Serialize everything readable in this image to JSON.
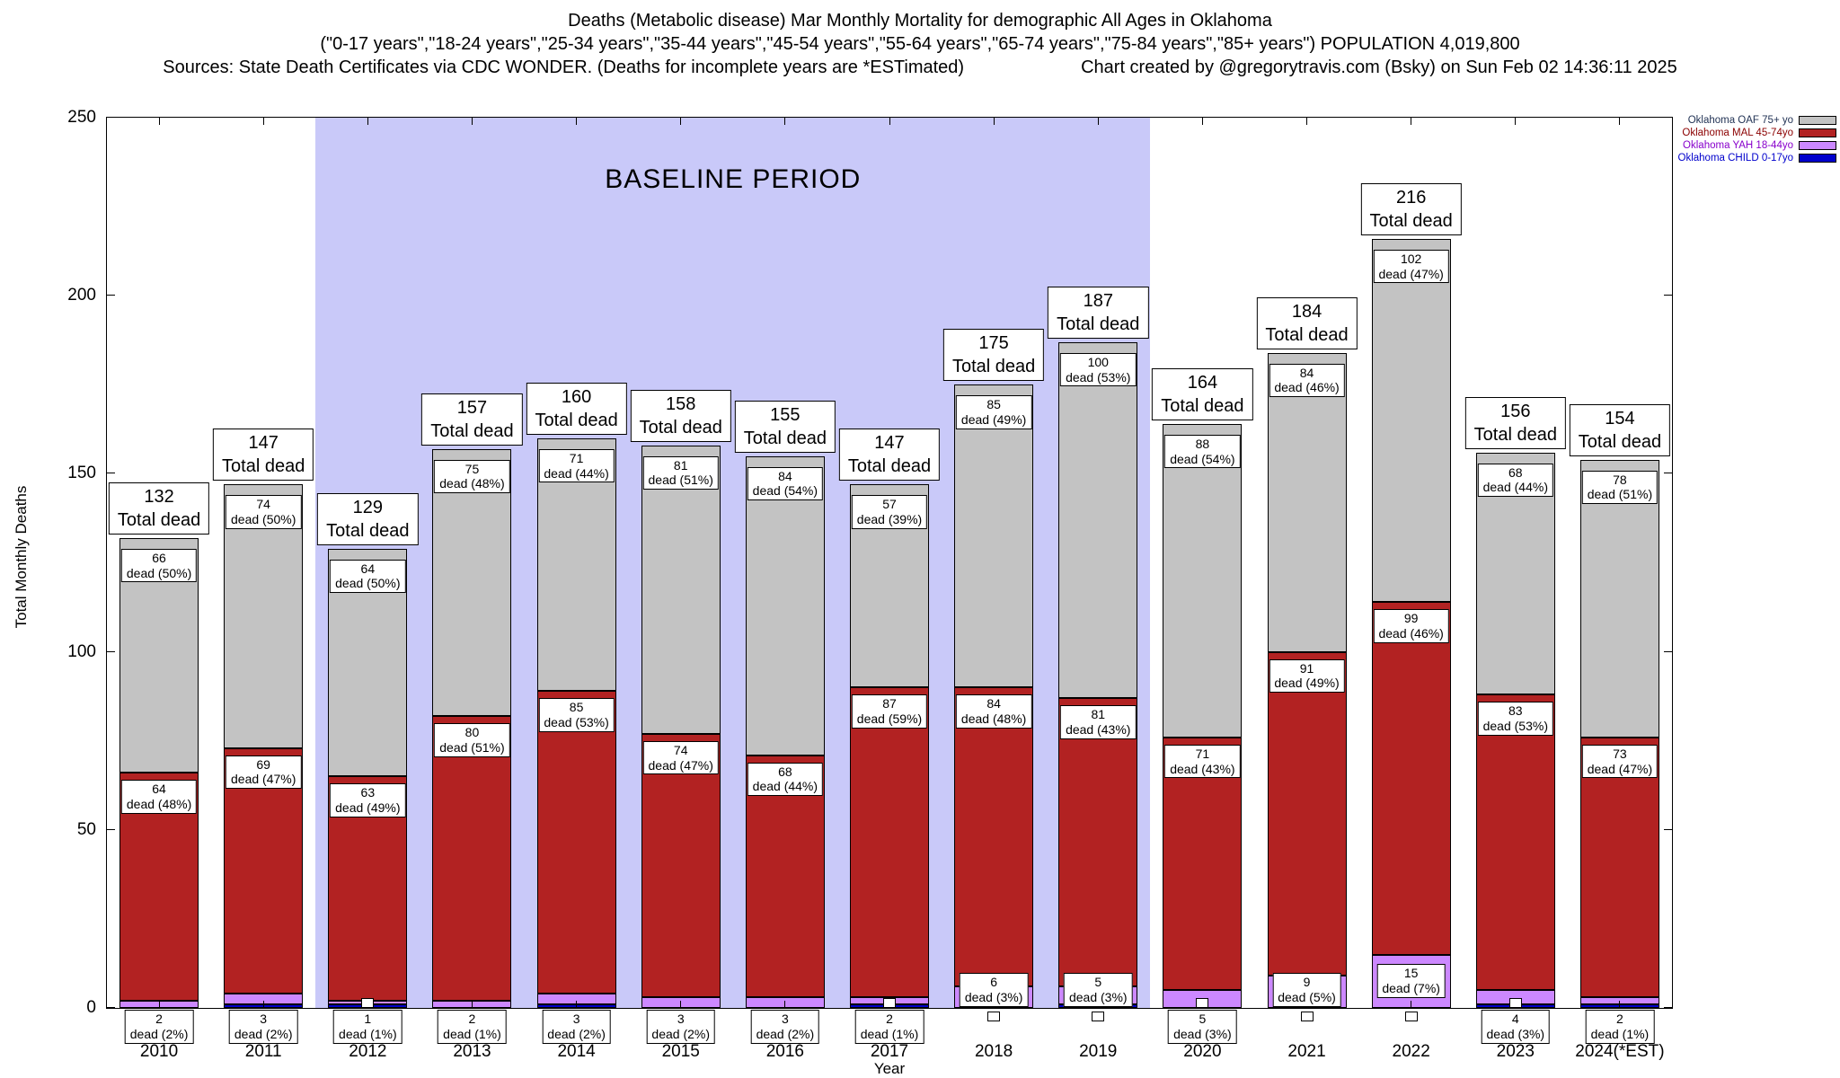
{
  "titles": {
    "line1": "Deaths (Metabolic disease) Mar Monthly Mortality for demographic All Ages in Oklahoma",
    "line2": "(\"0-17 years\",\"18-24 years\",\"25-34 years\",\"35-44 years\",\"45-54 years\",\"55-64 years\",\"65-74 years\",\"75-84 years\",\"85+ years\") POPULATION 4,019,800",
    "sources": "Sources: State Death Certificates via CDC WONDER. (Deaths for incomplete years are *ESTimated)",
    "credit": "Chart created by @gregorytravis.com (Bsky) on Sun Feb 02 14:36:11 2025"
  },
  "chart_data": {
    "type": "bar",
    "stacked": true,
    "title": "Deaths (Metabolic disease) Mar Monthly Mortality for demographic All Ages in Oklahoma",
    "xlabel": "Year",
    "ylabel": "Total Monthly Deaths",
    "ylim": [
      0,
      250
    ],
    "y_ticks": [
      0,
      50,
      100,
      150,
      200,
      250
    ],
    "grid": false,
    "legend_position": "top-right",
    "total_caption": "Total dead",
    "baseline": {
      "label": "BASELINE PERIOD",
      "start_year": "2012",
      "end_year": "2019",
      "color": "#c9c9f9"
    },
    "colors": {
      "oaf": "#c3c3c3",
      "mal": "#b22222",
      "yah": "#cc88ff",
      "child": "#0000cc"
    },
    "legend": [
      {
        "name": "Oklahoma OAF 75+ yo",
        "color": "#c3c3c3",
        "text_color": "#223355"
      },
      {
        "name": "Oklahoma MAL 45-74yo",
        "color": "#b22222",
        "text_color": "#8b0000"
      },
      {
        "name": "Oklahoma YAH 18-44yo",
        "color": "#cc88ff",
        "text_color": "#8800cc"
      },
      {
        "name": "Oklahoma CHILD 0-17yo",
        "color": "#0000cc",
        "text_color": "#0000cc"
      }
    ],
    "categories": [
      "2010",
      "2011",
      "2012",
      "2013",
      "2014",
      "2015",
      "2016",
      "2017",
      "2018",
      "2019",
      "2020",
      "2021",
      "2022",
      "2023",
      "2024(*EST)"
    ],
    "series": [
      {
        "name": "Oklahoma CHILD 0-17yo",
        "values": [
          0,
          1,
          1,
          0,
          1,
          0,
          0,
          1,
          0,
          1,
          0,
          0,
          0,
          1,
          1
        ]
      },
      {
        "name": "Oklahoma YAH 18-44yo",
        "values": [
          2,
          3,
          1,
          2,
          3,
          3,
          3,
          2,
          6,
          5,
          5,
          9,
          15,
          4,
          2
        ]
      },
      {
        "name": "Oklahoma MAL 45-74yo",
        "values": [
          64,
          69,
          63,
          80,
          85,
          74,
          68,
          87,
          84,
          81,
          71,
          91,
          99,
          83,
          73
        ]
      },
      {
        "name": "Oklahoma OAF 75+ yo",
        "values": [
          66,
          74,
          64,
          75,
          71,
          81,
          84,
          57,
          85,
          100,
          88,
          84,
          102,
          68,
          78
        ]
      }
    ],
    "totals": [
      132,
      147,
      129,
      157,
      160,
      158,
      155,
      147,
      175,
      187,
      164,
      184,
      216,
      156,
      154
    ],
    "bars": [
      {
        "year": "2010",
        "total": 132,
        "child": 0,
        "yah": 2,
        "yah_label": "dead (2%)",
        "yah_pos": "below",
        "square": null,
        "mal": 64,
        "mal_label": "dead (48%)",
        "oaf": 66,
        "oaf_label": "dead (50%)"
      },
      {
        "year": "2011",
        "total": 147,
        "child": 1,
        "yah": 3,
        "yah_label": "dead (2%)",
        "yah_pos": "below",
        "square": null,
        "mal": 69,
        "mal_label": "dead (47%)",
        "oaf": 74,
        "oaf_label": "dead (50%)"
      },
      {
        "year": "2012",
        "total": 129,
        "child": 1,
        "yah": 1,
        "yah_label": "dead (1%)",
        "yah_pos": "below",
        "square": "axis",
        "mal": 63,
        "mal_label": "dead (49%)",
        "oaf": 64,
        "oaf_label": "dead (50%)"
      },
      {
        "year": "2013",
        "total": 157,
        "child": 0,
        "yah": 2,
        "yah_label": "dead (1%)",
        "yah_pos": "below",
        "square": null,
        "mal": 80,
        "mal_label": "dead (51%)",
        "oaf": 75,
        "oaf_label": "dead (48%)"
      },
      {
        "year": "2014",
        "total": 160,
        "child": 1,
        "yah": 3,
        "yah_label": "dead (2%)",
        "yah_pos": "below",
        "square": null,
        "mal": 85,
        "mal_label": "dead (53%)",
        "oaf": 71,
        "oaf_label": "dead (44%)"
      },
      {
        "year": "2015",
        "total": 158,
        "child": 0,
        "yah": 3,
        "yah_label": "dead (2%)",
        "yah_pos": "below",
        "square": null,
        "mal": 74,
        "mal_label": "dead (47%)",
        "oaf": 81,
        "oaf_label": "dead (51%)"
      },
      {
        "year": "2016",
        "total": 155,
        "child": 0,
        "yah": 3,
        "yah_label": "dead (2%)",
        "yah_pos": "below",
        "square": null,
        "mal": 68,
        "mal_label": "dead (44%)",
        "oaf": 84,
        "oaf_label": "dead (54%)"
      },
      {
        "year": "2017",
        "total": 147,
        "child": 1,
        "yah": 2,
        "yah_label": "dead (1%)",
        "yah_pos": "below",
        "square": "axis",
        "mal": 87,
        "mal_label": "dead (59%)",
        "oaf": 57,
        "oaf_label": "dead (39%)"
      },
      {
        "year": "2018",
        "total": 175,
        "child": 0,
        "yah": 6,
        "yah_label": "dead (3%)",
        "yah_pos": "above",
        "square": "below",
        "mal": 84,
        "mal_label": "dead (48%)",
        "oaf": 85,
        "oaf_label": "dead (49%)"
      },
      {
        "year": "2019",
        "total": 187,
        "child": 1,
        "yah": 5,
        "yah_label": "dead (3%)",
        "yah_pos": "above",
        "square": "below",
        "mal": 81,
        "mal_label": "dead (43%)",
        "oaf": 100,
        "oaf_label": "dead (53%)"
      },
      {
        "year": "2020",
        "total": 164,
        "child": 0,
        "yah": 5,
        "yah_label": "dead (3%)",
        "yah_pos": "below",
        "square": "axis",
        "mal": 71,
        "mal_label": "dead (43%)",
        "oaf": 88,
        "oaf_label": "dead (54%)"
      },
      {
        "year": "2021",
        "total": 184,
        "child": 0,
        "yah": 9,
        "yah_label": "dead (5%)",
        "yah_pos": "above",
        "square": "below",
        "mal": 91,
        "mal_label": "dead (49%)",
        "oaf": 84,
        "oaf_label": "dead (46%)"
      },
      {
        "year": "2022",
        "total": 216,
        "child": 0,
        "yah": 15,
        "yah_label": "dead (7%)",
        "yah_pos": "inside",
        "square": "below",
        "mal": 99,
        "mal_label": "dead (46%)",
        "oaf": 102,
        "oaf_label": "dead (47%)"
      },
      {
        "year": "2023",
        "total": 156,
        "child": 1,
        "yah": 4,
        "yah_label": "dead (3%)",
        "yah_pos": "below",
        "square": "axis",
        "mal": 83,
        "mal_label": "dead (53%)",
        "oaf": 68,
        "oaf_label": "dead (44%)"
      },
      {
        "year": "2024(*EST)",
        "total": 154,
        "child": 1,
        "yah": 2,
        "yah_label": "dead (1%)",
        "yah_pos": "below",
        "square": null,
        "mal": 73,
        "mal_label": "dead (47%)",
        "oaf": 78,
        "oaf_label": "dead (51%)"
      }
    ]
  }
}
